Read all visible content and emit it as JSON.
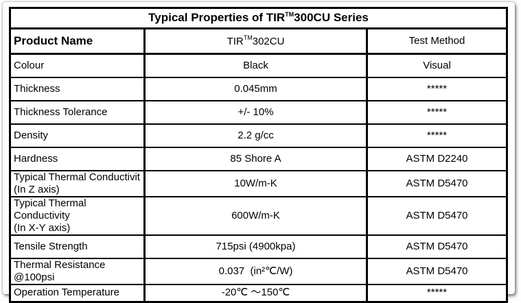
{
  "title": {
    "prefix": "Typical Properties of TIR",
    "tm": "TM",
    "suffix": "300CU Series"
  },
  "header": {
    "product_name": "Product Name",
    "product": {
      "prefix": "TIR",
      "tm": "TM",
      "suffix": "302CU"
    },
    "test_method": "Test Method"
  },
  "rows": [
    {
      "label": "Colour",
      "value": "Black",
      "method": "Visual"
    },
    {
      "label": "Thickness",
      "value": "0.045mm",
      "method": "*****"
    },
    {
      "label": "Thickness Tolerance",
      "value": "+/- 10%",
      "method": "*****"
    },
    {
      "label": "Density",
      "value": "2.2 g/cc",
      "method": "*****"
    },
    {
      "label": "Hardness",
      "value": "85 Shore A",
      "method": "ASTM D2240"
    },
    {
      "label": "Typical Thermal Conductivit",
      "label2": "(In Z axis)",
      "value": "10W/m-K",
      "method": "ASTM D5470"
    },
    {
      "label": "Typical Thermal Conductivity",
      "label2": "(In X-Y axis)",
      "value": "600W/m-K",
      "method": "ASTM D5470"
    },
    {
      "label": "Tensile Strength",
      "value": "715psi (4900kpa)",
      "method": "ASTM D5470"
    },
    {
      "label": "Thermal Resistance  @100psi",
      "value": "0.037  (in²℃/W)",
      "method": "ASTM D5470"
    },
    {
      "label": "Operation Temperature",
      "value": "-20℃ ～150℃",
      "method": "*****"
    }
  ]
}
